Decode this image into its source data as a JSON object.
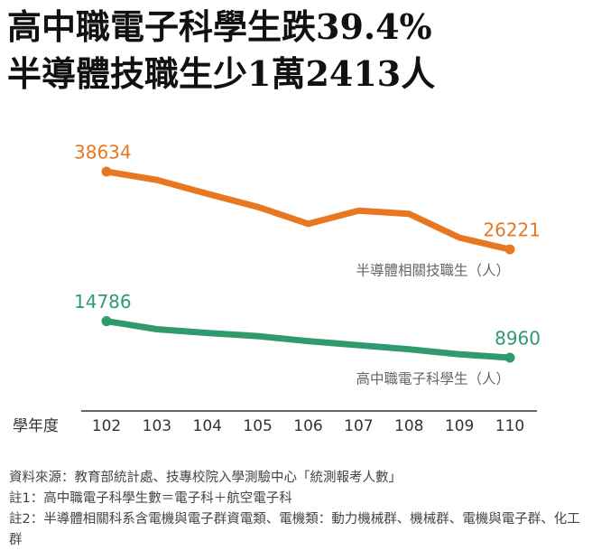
{
  "chart_data": {
    "type": "line",
    "title": "高中職電子科學生跌39.4%",
    "subtitle": "半導體技職生少1萬2413人",
    "x_label": "學年度",
    "categories": [
      "102",
      "103",
      "104",
      "105",
      "106",
      "107",
      "108",
      "109",
      "110"
    ],
    "series": [
      {
        "name": "半導體相關技職生（人）",
        "color": "#e87722",
        "values": [
          38634,
          37300,
          35100,
          33000,
          30300,
          32400,
          31900,
          28100,
          26221
        ]
      },
      {
        "name": "高中職電子科學生（人）",
        "color": "#2e9a6e",
        "values": [
          14786,
          13500,
          12900,
          12400,
          11600,
          10950,
          10300,
          9500,
          8960
        ]
      }
    ],
    "notes": [
      "資料來源：教育部統計處、技專校院入學測驗中心「統測報考人數」",
      "註1：高中職電子科學生數＝電子科＋航空電子科",
      "註2：半導體相關科系含電機與電子群資電類、電機類：動力機械群、機械群、電機與電子群、化工群"
    ]
  }
}
